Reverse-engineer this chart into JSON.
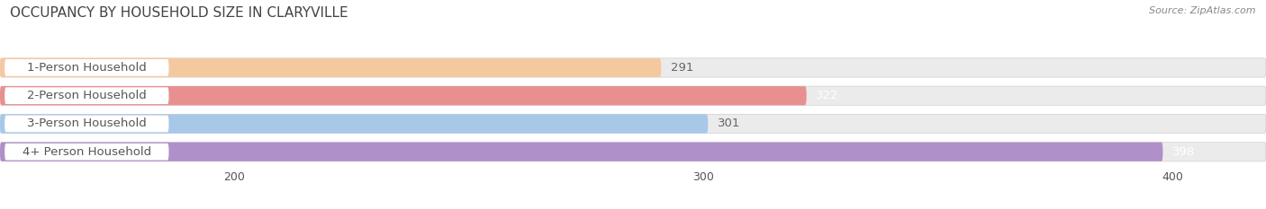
{
  "title": "OCCUPANCY BY HOUSEHOLD SIZE IN CLARYVILLE",
  "source": "Source: ZipAtlas.com",
  "categories": [
    "1-Person Household",
    "2-Person Household",
    "3-Person Household",
    "4+ Person Household"
  ],
  "values": [
    291,
    322,
    301,
    398
  ],
  "bar_colors": [
    "#f5c9a0",
    "#e89090",
    "#a8c8e8",
    "#b090c8"
  ],
  "value_colors": [
    "#666666",
    "#ffffff",
    "#666666",
    "#ffffff"
  ],
  "xlim_data": [
    150,
    420
  ],
  "xticks": [
    200,
    300,
    400
  ],
  "bar_height": 0.68,
  "background_color": "#ffffff",
  "title_fontsize": 11,
  "label_fontsize": 9.5,
  "value_fontsize": 9.5,
  "container_color": "#ebebeb",
  "label_pill_color": "#ffffff",
  "label_text_color": "#555555"
}
